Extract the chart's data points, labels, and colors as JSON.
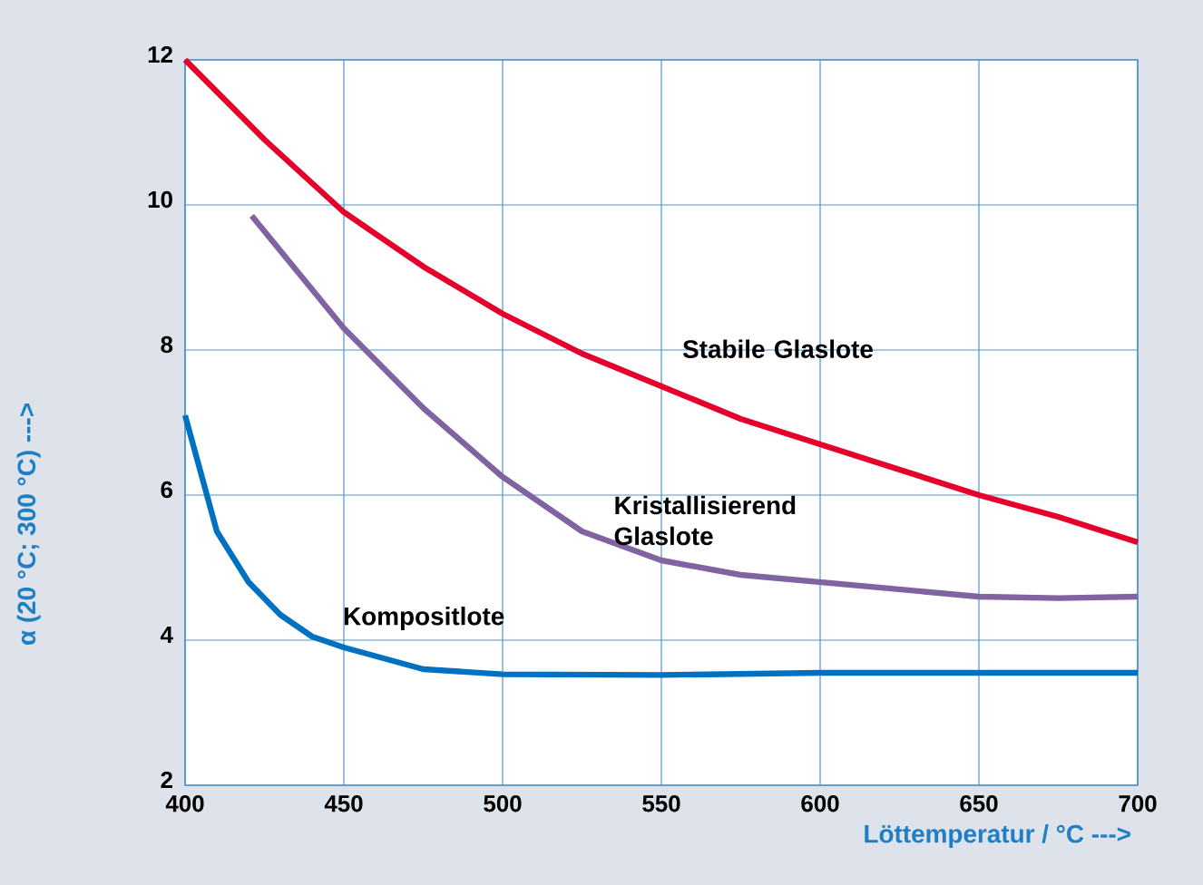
{
  "chart_data": {
    "type": "line",
    "xlabel": "Löttemperatur / °C --->",
    "ylabel": "α (20 °C; 300 °C) --->",
    "xlim": [
      400,
      700
    ],
    "ylim": [
      2,
      12
    ],
    "xticks": [
      400,
      450,
      500,
      550,
      600,
      650,
      700
    ],
    "yticks": [
      2,
      4,
      6,
      8,
      10,
      12
    ],
    "grid": true,
    "legend": false,
    "marker": "none",
    "line_style": "solid",
    "series": [
      {
        "name": "Stabile Glaslote",
        "color": "#e4002b",
        "x": [
          400,
          425,
          450,
          475,
          500,
          525,
          550,
          575,
          600,
          625,
          650,
          675,
          700
        ],
        "values": [
          12,
          10.9,
          9.9,
          9.15,
          8.5,
          7.95,
          7.5,
          7.05,
          6.7,
          6.35,
          6.0,
          5.7,
          5.35
        ]
      },
      {
        "name": "Kristallisierend Glaslote",
        "color": "#8064a2",
        "x": [
          421,
          450,
          475,
          500,
          525,
          550,
          575,
          600,
          625,
          650,
          675,
          700
        ],
        "values": [
          9.85,
          8.3,
          7.2,
          6.25,
          5.5,
          5.1,
          4.9,
          4.8,
          4.7,
          4.6,
          4.58,
          4.6
        ]
      },
      {
        "name": "Kompositlote",
        "color": "#0070c0",
        "x": [
          400,
          410,
          420,
          430,
          440,
          450,
          475,
          500,
          550,
          600,
          650,
          700
        ],
        "values": [
          7.1,
          5.5,
          4.8,
          4.35,
          4.05,
          3.9,
          3.6,
          3.53,
          3.52,
          3.55,
          3.55,
          3.55
        ]
      }
    ]
  }
}
